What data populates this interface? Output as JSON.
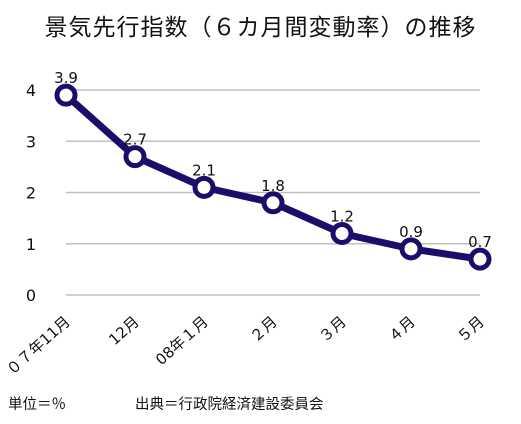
{
  "chart_data": {
    "type": "line",
    "title": "景気先行指数（６カ月間変動率）の推移",
    "categories": [
      "０７年11月",
      "12月",
      "08年１月",
      "２月",
      "３月",
      "４月",
      "５月"
    ],
    "series": [
      {
        "values": [
          3.9,
          2.7,
          2.1,
          1.8,
          1.2,
          0.9,
          0.7
        ]
      }
    ],
    "data_labels": [
      "3.9",
      "2.7",
      "2.1",
      "1.8",
      "1.2",
      "0.9",
      "0.7"
    ],
    "ylim": [
      0,
      4
    ],
    "yticks": [
      0,
      1,
      2,
      3,
      4
    ],
    "ytick_labels": [
      "0",
      "1",
      "2",
      "3",
      "4"
    ],
    "grid": true,
    "xlabel": "",
    "ylabel": ""
  },
  "footnotes": {
    "unit": "単位＝％",
    "source": "出典＝行政院経済建設委員会"
  },
  "colors": {
    "line": "#1a0e6b",
    "marker_fill": "#ffffff",
    "grid": "#bfbfbf",
    "text": "#111111"
  }
}
